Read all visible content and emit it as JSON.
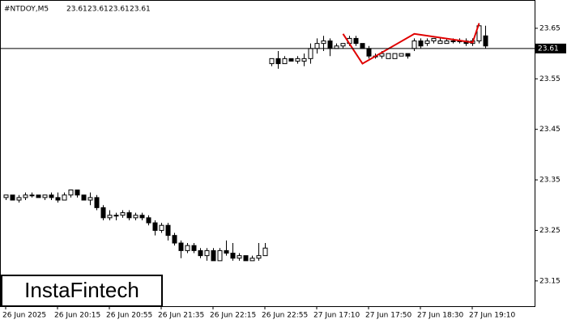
{
  "chart_data": {
    "type": "candlestick",
    "title": "#NTDOY,M5",
    "quote": [
      23.61,
      23.61,
      23.61,
      23.61
    ],
    "current_price": 23.61,
    "logo": "InstaFintech",
    "categories": [
      "26 Jun 2025",
      null,
      null,
      null,
      null,
      null,
      null,
      null,
      "26 Jun 20:15",
      null,
      null,
      null,
      null,
      null,
      null,
      null,
      "26 Jun 20:55",
      null,
      null,
      null,
      null,
      null,
      null,
      null,
      "26 Jun 21:35",
      null,
      null,
      null,
      null,
      null,
      null,
      null,
      "26 Jun 22:15",
      null,
      null,
      null,
      null,
      null,
      null,
      null,
      "26 Jun 22:55",
      null,
      null,
      null,
      null,
      null,
      null,
      null,
      "27 Jun 17:10",
      null,
      null,
      null,
      null,
      null,
      null,
      null,
      "27 Jun 17:50",
      null,
      null,
      null,
      null,
      null,
      null,
      null,
      "27 Jun 18:30",
      null,
      null,
      null,
      null,
      null,
      null,
      null,
      "27 Jun 19:10",
      null,
      null
    ],
    "open": [
      23.315,
      23.32,
      23.31,
      23.315,
      23.32,
      23.32,
      23.315,
      23.32,
      23.315,
      23.31,
      23.32,
      23.33,
      23.32,
      23.31,
      23.315,
      23.295,
      23.275,
      23.28,
      23.28,
      23.285,
      23.275,
      23.28,
      23.275,
      23.265,
      23.25,
      23.26,
      23.24,
      23.225,
      23.21,
      23.22,
      23.21,
      23.2,
      23.21,
      23.19,
      23.21,
      23.205,
      23.195,
      23.2,
      23.19,
      23.195,
      23.2,
      23.58,
      23.59,
      23.58,
      23.59,
      23.585,
      23.585,
      23.59,
      23.61,
      23.62,
      23.625,
      23.61,
      23.615,
      23.62,
      23.63,
      23.62,
      23.61,
      23.595,
      23.595,
      23.59,
      23.59,
      23.595,
      23.6,
      23.61,
      23.625,
      23.62,
      23.625,
      23.62,
      23.62,
      23.625,
      23.625,
      23.625,
      23.62,
      23.625,
      23.635
    ],
    "high": [
      23.32,
      23.32,
      23.32,
      23.325,
      23.325,
      23.32,
      23.32,
      23.325,
      23.325,
      23.325,
      23.33,
      23.33,
      23.32,
      23.325,
      23.32,
      23.3,
      23.29,
      23.285,
      23.29,
      23.29,
      23.285,
      23.285,
      23.28,
      23.27,
      23.265,
      23.265,
      23.245,
      23.23,
      23.225,
      23.225,
      23.215,
      23.215,
      23.215,
      23.215,
      23.23,
      23.225,
      23.205,
      23.2,
      23.2,
      23.225,
      23.225,
      23.59,
      23.605,
      23.595,
      23.59,
      23.595,
      23.6,
      23.62,
      23.63,
      23.635,
      23.63,
      23.62,
      23.62,
      23.635,
      23.635,
      23.62,
      23.615,
      23.6,
      23.605,
      23.6,
      23.6,
      23.6,
      23.6,
      23.63,
      23.63,
      23.63,
      23.63,
      23.63,
      23.63,
      23.63,
      23.63,
      23.63,
      23.63,
      23.66,
      23.655
    ],
    "low": [
      23.31,
      23.31,
      23.305,
      23.31,
      23.315,
      23.315,
      23.31,
      23.31,
      23.305,
      23.31,
      23.315,
      23.315,
      23.31,
      23.3,
      23.29,
      23.27,
      23.27,
      23.27,
      23.275,
      23.27,
      23.27,
      23.27,
      23.26,
      23.24,
      23.245,
      23.23,
      23.22,
      23.195,
      23.205,
      23.205,
      23.195,
      23.19,
      23.19,
      23.19,
      23.2,
      23.19,
      23.19,
      23.19,
      23.19,
      23.19,
      23.2,
      23.575,
      23.57,
      23.58,
      23.585,
      23.58,
      23.575,
      23.58,
      23.6,
      23.605,
      23.595,
      23.61,
      23.61,
      23.615,
      23.615,
      23.61,
      23.59,
      23.59,
      23.59,
      23.59,
      23.59,
      23.595,
      23.59,
      23.605,
      23.61,
      23.615,
      23.62,
      23.62,
      23.62,
      23.62,
      23.62,
      23.615,
      23.615,
      23.62,
      23.61
    ],
    "close": [
      23.32,
      23.31,
      23.315,
      23.32,
      23.32,
      23.315,
      23.32,
      23.315,
      23.31,
      23.32,
      23.33,
      23.32,
      23.31,
      23.315,
      23.295,
      23.275,
      23.28,
      23.28,
      23.285,
      23.275,
      23.28,
      23.275,
      23.265,
      23.25,
      23.26,
      23.24,
      23.225,
      23.21,
      23.22,
      23.21,
      23.2,
      23.21,
      23.19,
      23.21,
      23.205,
      23.195,
      23.2,
      23.19,
      23.195,
      23.2,
      23.215,
      23.59,
      23.58,
      23.59,
      23.585,
      23.59,
      23.59,
      23.61,
      23.62,
      23.625,
      23.61,
      23.615,
      23.62,
      23.63,
      23.62,
      23.61,
      23.595,
      23.595,
      23.6,
      23.6,
      23.6,
      23.6,
      23.595,
      23.625,
      23.615,
      23.625,
      23.63,
      23.625,
      23.625,
      23.625,
      23.625,
      23.62,
      23.625,
      23.655,
      23.615
    ],
    "pattern": {
      "color": "#e00000",
      "x": [
        52,
        55,
        63,
        72,
        73
      ],
      "values": [
        23.639,
        23.58,
        23.639,
        23.622,
        23.66
      ]
    },
    "ylim": [
      23.1,
      23.706
    ],
    "yticks": [
      23.65,
      23.55,
      23.45,
      23.35,
      23.25,
      23.15
    ]
  }
}
